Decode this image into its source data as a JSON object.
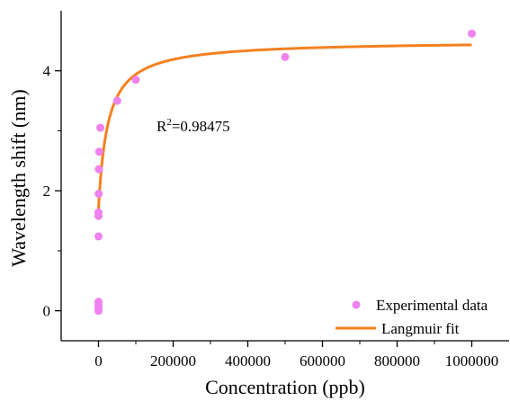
{
  "chart_data": {
    "type": "scatter",
    "title": "",
    "xlabel": "Concentration (ppb)",
    "ylabel": "Wavelength shift (nm)",
    "xlim": [
      -100000,
      1100000
    ],
    "ylim": [
      -0.5,
      5.0
    ],
    "x_ticks": [
      0,
      200000,
      400000,
      600000,
      800000,
      1000000
    ],
    "x_tick_labels": [
      "0",
      "200000",
      "400000",
      "600000",
      "800000",
      "1000000"
    ],
    "y_ticks": [
      0,
      2,
      4
    ],
    "y_tick_labels": [
      "0",
      "2",
      "4"
    ],
    "grid": false,
    "legend_position": "bottom-right",
    "annotation": {
      "base": "R",
      "superscript": "2",
      "value": "=0.98475"
    },
    "series": [
      {
        "name": "Experimental data",
        "kind": "scatter",
        "color": "#ee82ee",
        "points": [
          {
            "x": 0,
            "y": 0.0
          },
          {
            "x": 0,
            "y": 0.05
          },
          {
            "x": 0,
            "y": 0.1
          },
          {
            "x": 0,
            "y": 0.15
          },
          {
            "x": 0,
            "y": 1.24
          },
          {
            "x": 0,
            "y": 1.58
          },
          {
            "x": 0,
            "y": 1.64
          },
          {
            "x": 500,
            "y": 1.95
          },
          {
            "x": 1000,
            "y": 2.36
          },
          {
            "x": 2000,
            "y": 2.65
          },
          {
            "x": 5000,
            "y": 3.05
          },
          {
            "x": 50000,
            "y": 3.5
          },
          {
            "x": 100000,
            "y": 3.85
          },
          {
            "x": 500000,
            "y": 4.23
          },
          {
            "x": 1000000,
            "y": 4.62
          }
        ]
      },
      {
        "name": "Langmuir fit",
        "kind": "line",
        "color": "#f5801f",
        "model": {
          "A0": 1.7,
          "Bmax": 2.8,
          "K": 25000
        },
        "x_range": [
          0,
          1000000
        ]
      }
    ]
  }
}
